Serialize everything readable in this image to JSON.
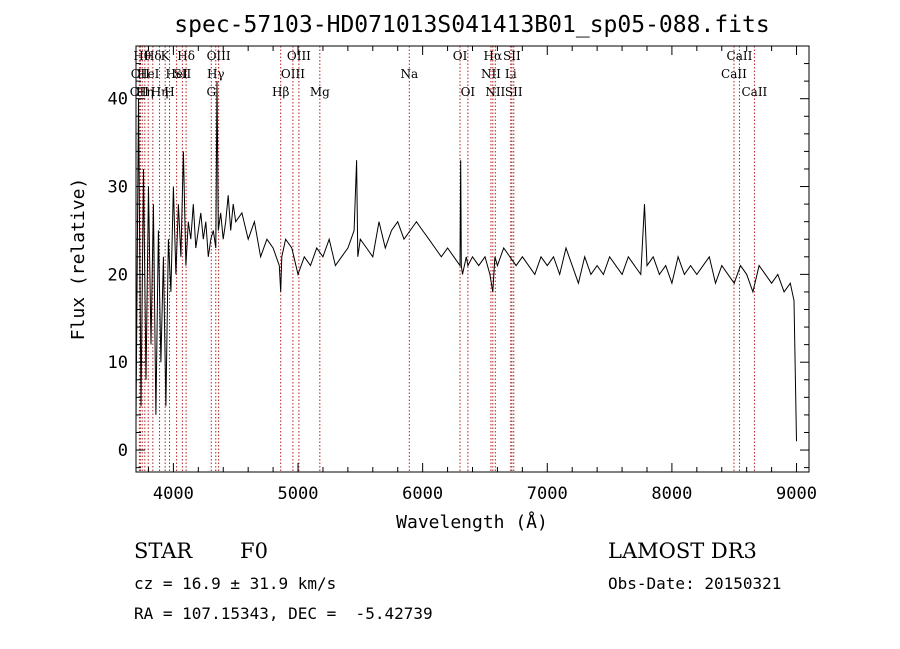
{
  "chart_data": {
    "type": "line",
    "title": "spec-57103-HD071013S041413B01_sp05-088.fits",
    "xlabel": "Wavelength (Å)",
    "ylabel": "Flux (relative)",
    "xlim": [
      3700,
      9100
    ],
    "ylim": [
      -2.5,
      46
    ],
    "x_ticks": [
      4000,
      5000,
      6000,
      7000,
      8000,
      9000
    ],
    "y_ticks": [
      0,
      10,
      20,
      30,
      40
    ],
    "grid": false,
    "line_color": "#000000",
    "marker_color": "#b22222",
    "spectrum": {
      "x": [
        3700,
        3720,
        3740,
        3760,
        3780,
        3800,
        3820,
        3840,
        3860,
        3880,
        3900,
        3920,
        3940,
        3960,
        3980,
        4000,
        4020,
        4040,
        4060,
        4080,
        4100,
        4120,
        4140,
        4160,
        4180,
        4200,
        4220,
        4240,
        4260,
        4280,
        4300,
        4320,
        4340,
        4350,
        4360,
        4380,
        4400,
        4420,
        4440,
        4460,
        4480,
        4500,
        4550,
        4600,
        4650,
        4700,
        4750,
        4800,
        4850,
        4861,
        4870,
        4900,
        4950,
        5000,
        5050,
        5100,
        5150,
        5200,
        5250,
        5300,
        5350,
        5400,
        5450,
        5470,
        5480,
        5500,
        5550,
        5600,
        5650,
        5700,
        5750,
        5800,
        5850,
        5900,
        5950,
        6000,
        6050,
        6100,
        6150,
        6200,
        6250,
        6300,
        6305,
        6310,
        6320,
        6350,
        6363,
        6400,
        6450,
        6500,
        6540,
        6563,
        6580,
        6600,
        6650,
        6700,
        6750,
        6800,
        6850,
        6900,
        6950,
        7000,
        7050,
        7100,
        7150,
        7200,
        7250,
        7300,
        7350,
        7400,
        7450,
        7500,
        7550,
        7600,
        7650,
        7700,
        7750,
        7780,
        7800,
        7850,
        7900,
        7950,
        8000,
        8050,
        8100,
        8150,
        8200,
        8250,
        8300,
        8350,
        8400,
        8450,
        8500,
        8550,
        8600,
        8650,
        8700,
        8750,
        8800,
        8850,
        8900,
        8950,
        8980,
        9000
      ],
      "y": [
        3,
        40,
        5,
        32,
        8,
        30,
        12,
        28,
        4,
        25,
        10,
        22,
        5,
        24,
        18,
        30,
        20,
        28,
        22,
        34,
        21,
        26,
        24,
        28,
        23,
        25,
        27,
        24,
        26,
        22,
        24,
        25,
        23,
        42,
        25,
        27,
        24,
        26,
        29,
        25,
        28,
        26,
        27,
        24,
        26,
        22,
        24,
        23,
        21,
        18,
        22,
        24,
        23,
        20,
        22,
        21,
        23,
        22,
        24,
        21,
        22,
        23,
        25,
        33,
        22,
        24,
        23,
        22,
        26,
        23,
        25,
        26,
        24,
        25,
        26,
        25,
        24,
        23,
        22,
        23,
        22,
        21,
        33,
        21,
        20,
        22,
        21,
        22,
        21,
        22,
        20,
        18,
        22,
        21,
        23,
        22,
        21,
        22,
        21,
        20,
        22,
        21,
        22,
        20,
        23,
        21,
        19,
        22,
        20,
        21,
        20,
        22,
        21,
        20,
        22,
        21,
        20,
        28,
        21,
        22,
        20,
        21,
        19,
        22,
        20,
        21,
        20,
        21,
        22,
        19,
        21,
        20,
        19,
        21,
        20,
        18,
        21,
        20,
        19,
        20,
        18,
        19,
        17,
        1
      ]
    },
    "line_markers": [
      {
        "x": 3727,
        "label": "OII",
        "row": 2
      },
      {
        "x": 3735,
        "label": "OII",
        "row": 1
      },
      {
        "x": 3750,
        "label": "Hθ",
        "row": 0
      },
      {
        "x": 3771,
        "label": "Hη",
        "row": 2
      },
      {
        "x": 3798,
        "label": "HeI",
        "row": 1
      },
      {
        "x": 3835,
        "label": "Hδ",
        "row": 0
      },
      {
        "x": 3889,
        "label": "Hη",
        "row": 2
      },
      {
        "x": 3934,
        "label": "K",
        "row": 0
      },
      {
        "x": 3969,
        "label": "H",
        "row": 2
      },
      {
        "x": 4026,
        "label": "HeI",
        "row": 1
      },
      {
        "x": 4072,
        "label": "SII",
        "row": 1
      },
      {
        "x": 4102,
        "label": "Hδ",
        "row": 0
      },
      {
        "x": 4304,
        "label": "G",
        "row": 2
      },
      {
        "x": 4340,
        "label": "Hγ",
        "row": 1
      },
      {
        "x": 4363,
        "label": "OIII",
        "row": 0
      },
      {
        "x": 4861,
        "label": "Hβ",
        "row": 2
      },
      {
        "x": 4959,
        "label": "OIII",
        "row": 1
      },
      {
        "x": 5007,
        "label": "OIII",
        "row": 0
      },
      {
        "x": 5175,
        "label": "Mg",
        "row": 2
      },
      {
        "x": 5893,
        "label": "Na",
        "row": 1
      },
      {
        "x": 6300,
        "label": "OI",
        "row": 0
      },
      {
        "x": 6363,
        "label": "OI",
        "row": 2
      },
      {
        "x": 6548,
        "label": "NII",
        "row": 1
      },
      {
        "x": 6563,
        "label": "Hα",
        "row": 0
      },
      {
        "x": 6583,
        "label": "NII",
        "row": 2
      },
      {
        "x": 6707,
        "label": "Li",
        "row": 1
      },
      {
        "x": 6716,
        "label": "SII",
        "row": 0
      },
      {
        "x": 6731,
        "label": "SII",
        "row": 2
      },
      {
        "x": 8498,
        "label": "CaII",
        "row": 1
      },
      {
        "x": 8542,
        "label": "CaII",
        "row": 0
      },
      {
        "x": 8662,
        "label": "CaII",
        "row": 2
      }
    ]
  },
  "info": {
    "object_class": "STAR",
    "subclass": "F0",
    "survey": "LAMOST DR3",
    "redshift": "cz = 16.9 ± 31.9 km/s",
    "obs_date": "Obs-Date: 20150321",
    "coords": "RA = 107.15343, DEC =  -5.42739"
  }
}
